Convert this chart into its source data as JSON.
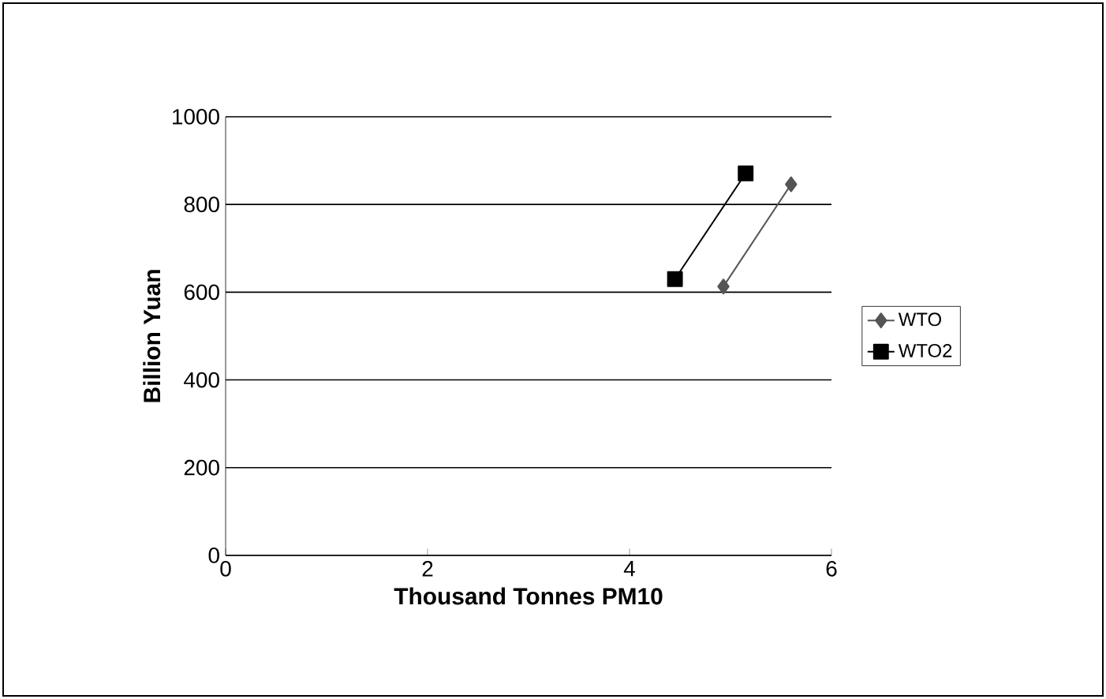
{
  "chart_data": {
    "type": "line",
    "xlabel": "Thousand Tonnes PM10",
    "ylabel": "Billion Yuan",
    "xlim": [
      0,
      6
    ],
    "xticks": [
      0,
      2,
      4,
      6
    ],
    "ylim": [
      0,
      1000
    ],
    "yticks": [
      0,
      200,
      400,
      600,
      800,
      1000
    ],
    "grid": "y",
    "legend": "right",
    "line_style": "solid",
    "series": [
      {
        "name": "WTO",
        "color": "#555555",
        "marker": "diamond",
        "x": [
          4.93,
          5.6
        ],
        "values": [
          613,
          846
        ]
      },
      {
        "name": "WTO2",
        "color": "#000000",
        "marker": "square",
        "x": [
          4.45,
          5.15
        ],
        "values": [
          630,
          871
        ]
      }
    ]
  }
}
